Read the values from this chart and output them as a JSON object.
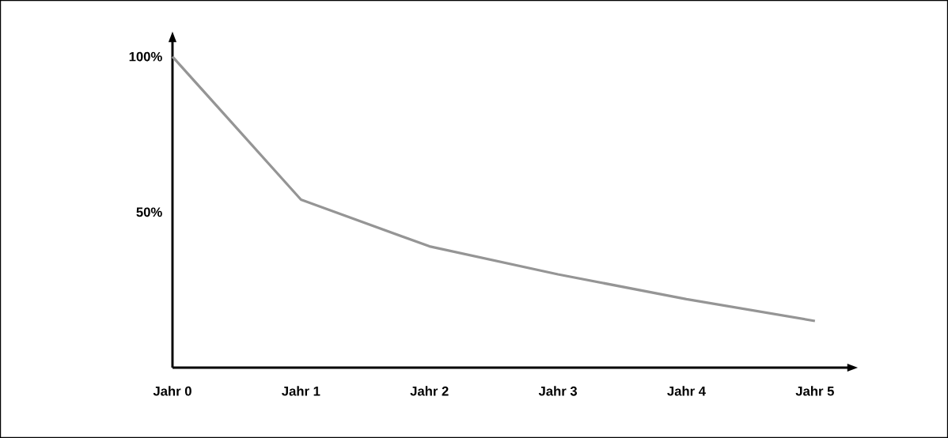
{
  "chart_data": {
    "type": "line",
    "categories": [
      "Jahr 0",
      "Jahr 1",
      "Jahr 2",
      "Jahr 3",
      "Jahr 4",
      "Jahr 5"
    ],
    "series": [
      {
        "color": "#959595",
        "values": [
          100,
          54,
          39,
          30,
          22,
          15
        ]
      }
    ],
    "ylim": [
      0,
      105
    ],
    "yticks": [
      {
        "value": 50,
        "label": "50%"
      },
      {
        "value": 100,
        "label": "100%"
      }
    ],
    "grid": false,
    "marker": "none",
    "line_style": "solid"
  }
}
